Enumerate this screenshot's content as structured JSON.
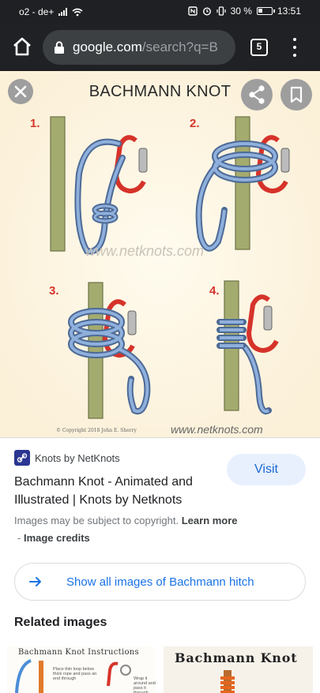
{
  "status_bar": {
    "carrier": "o2 - de+",
    "battery": "30 %",
    "time": "13:51"
  },
  "browser": {
    "url_host": "google.com",
    "url_path": "/search?q=B",
    "tab_count": "5"
  },
  "image": {
    "title": "BACHMANN KNOT",
    "steps": [
      "1.",
      "2.",
      "3.",
      "4."
    ],
    "watermark": "www.netknots.com",
    "watermark_bottom": "www.netknots.com",
    "copyright": "© Copyright 2018 John E. Sherry"
  },
  "result": {
    "source": "Knots by NetKnots",
    "title": "Bachmann Knot - Animated and Illustrated | Knots by Netknots",
    "visit_label": "Visit",
    "copyright_note": "Images may be subject to copyright.",
    "learn_more": "Learn more",
    "credits_sep": "-",
    "image_credits": "Image credits",
    "show_all_label": "Show all images of Bachmann hitch"
  },
  "related": {
    "heading": "Related images",
    "thumbs": [
      {
        "title": "Bachmann Knot Instructions",
        "text_left": "Place thin loop below thick rope and pass an end through",
        "text_right": "Wrap it around and pass it through"
      },
      {
        "title": "Bachmann Knot"
      }
    ]
  },
  "colors": {
    "toolbar": "#202124",
    "url_bar": "#3c4043",
    "accent": "#1a73e8",
    "visit_bg": "#e8f0fe",
    "rope": "#6f8fbf",
    "carabiner": "#d6332a",
    "pole": "#a4ab6f"
  },
  "icons": {
    "home": "home-icon",
    "lock": "lock-icon",
    "tabs": "tabs-icon",
    "menu": "more-vert-icon",
    "close": "close-icon",
    "share": "share-icon",
    "save": "bookmark-icon",
    "arrow": "arrow-right-icon"
  }
}
